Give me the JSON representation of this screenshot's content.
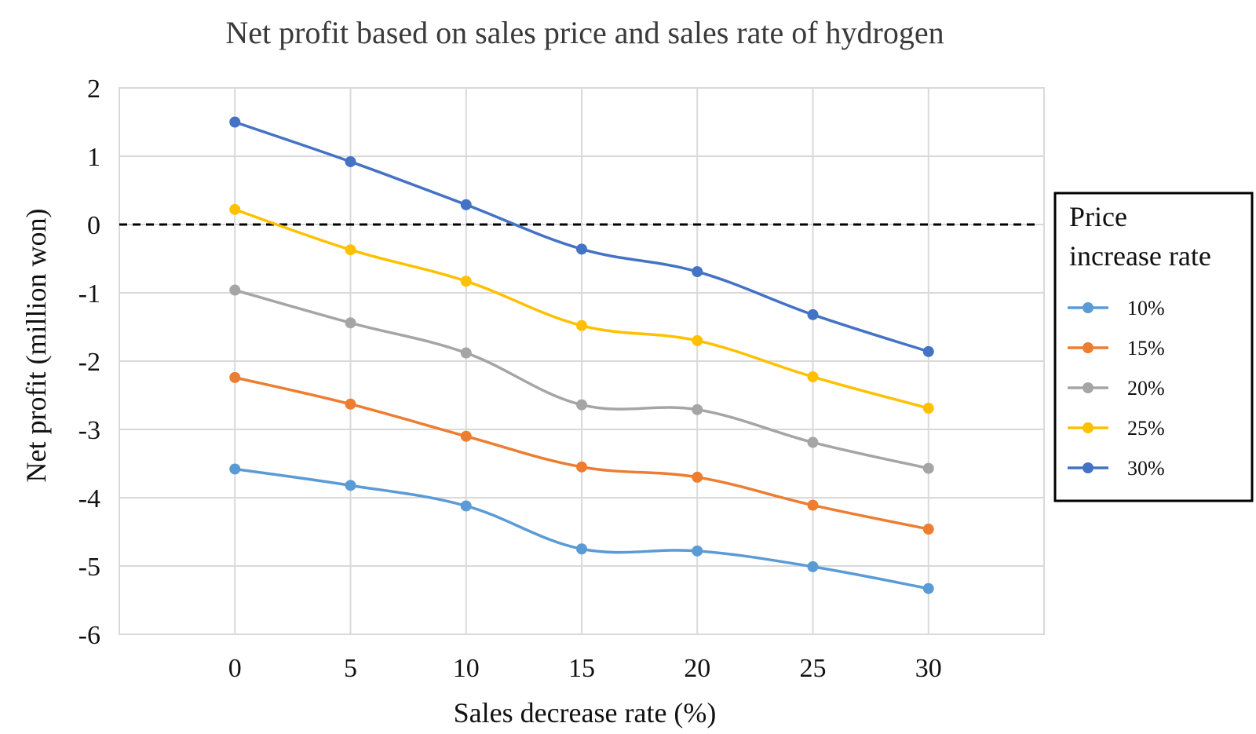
{
  "chart_data": {
    "type": "line",
    "title": "Net profit based on sales price and sales rate of hydrogen",
    "xlabel": "Sales decrease rate (%)",
    "ylabel": "Net profit (million won)",
    "x": [
      0,
      5,
      10,
      15,
      20,
      25,
      30
    ],
    "x_tick_labels": [
      "0",
      "5",
      "10",
      "15",
      "20",
      "25",
      "30"
    ],
    "y_tick_labels": [
      "2",
      "1",
      "0",
      "-1",
      "-2",
      "-3",
      "-4",
      "-5",
      "-6"
    ],
    "ylim": [
      -6,
      2
    ],
    "grid": true,
    "reference_line": {
      "y": 0,
      "style": "dashed",
      "color": "#000000"
    },
    "legend": {
      "title_line1": "Price",
      "title_line2": "increase rate",
      "position": "right"
    },
    "series": [
      {
        "name": "10%",
        "color": "#5B9BD5",
        "values": [
          -3.58,
          -3.82,
          -4.12,
          -4.75,
          -4.78,
          -5.01,
          -5.33
        ]
      },
      {
        "name": "15%",
        "color": "#ED7D31",
        "values": [
          -2.24,
          -2.63,
          -3.1,
          -3.55,
          -3.7,
          -4.11,
          -4.46
        ]
      },
      {
        "name": "20%",
        "color": "#A5A5A5",
        "values": [
          -0.96,
          -1.44,
          -1.88,
          -2.64,
          -2.71,
          -3.19,
          -3.57
        ]
      },
      {
        "name": "25%",
        "color": "#FFC000",
        "values": [
          0.22,
          -0.37,
          -0.83,
          -1.48,
          -1.7,
          -2.23,
          -2.69
        ]
      },
      {
        "name": "30%",
        "color": "#4472C4",
        "values": [
          1.5,
          0.92,
          0.29,
          -0.36,
          -0.69,
          -1.32,
          -1.86
        ]
      }
    ]
  }
}
